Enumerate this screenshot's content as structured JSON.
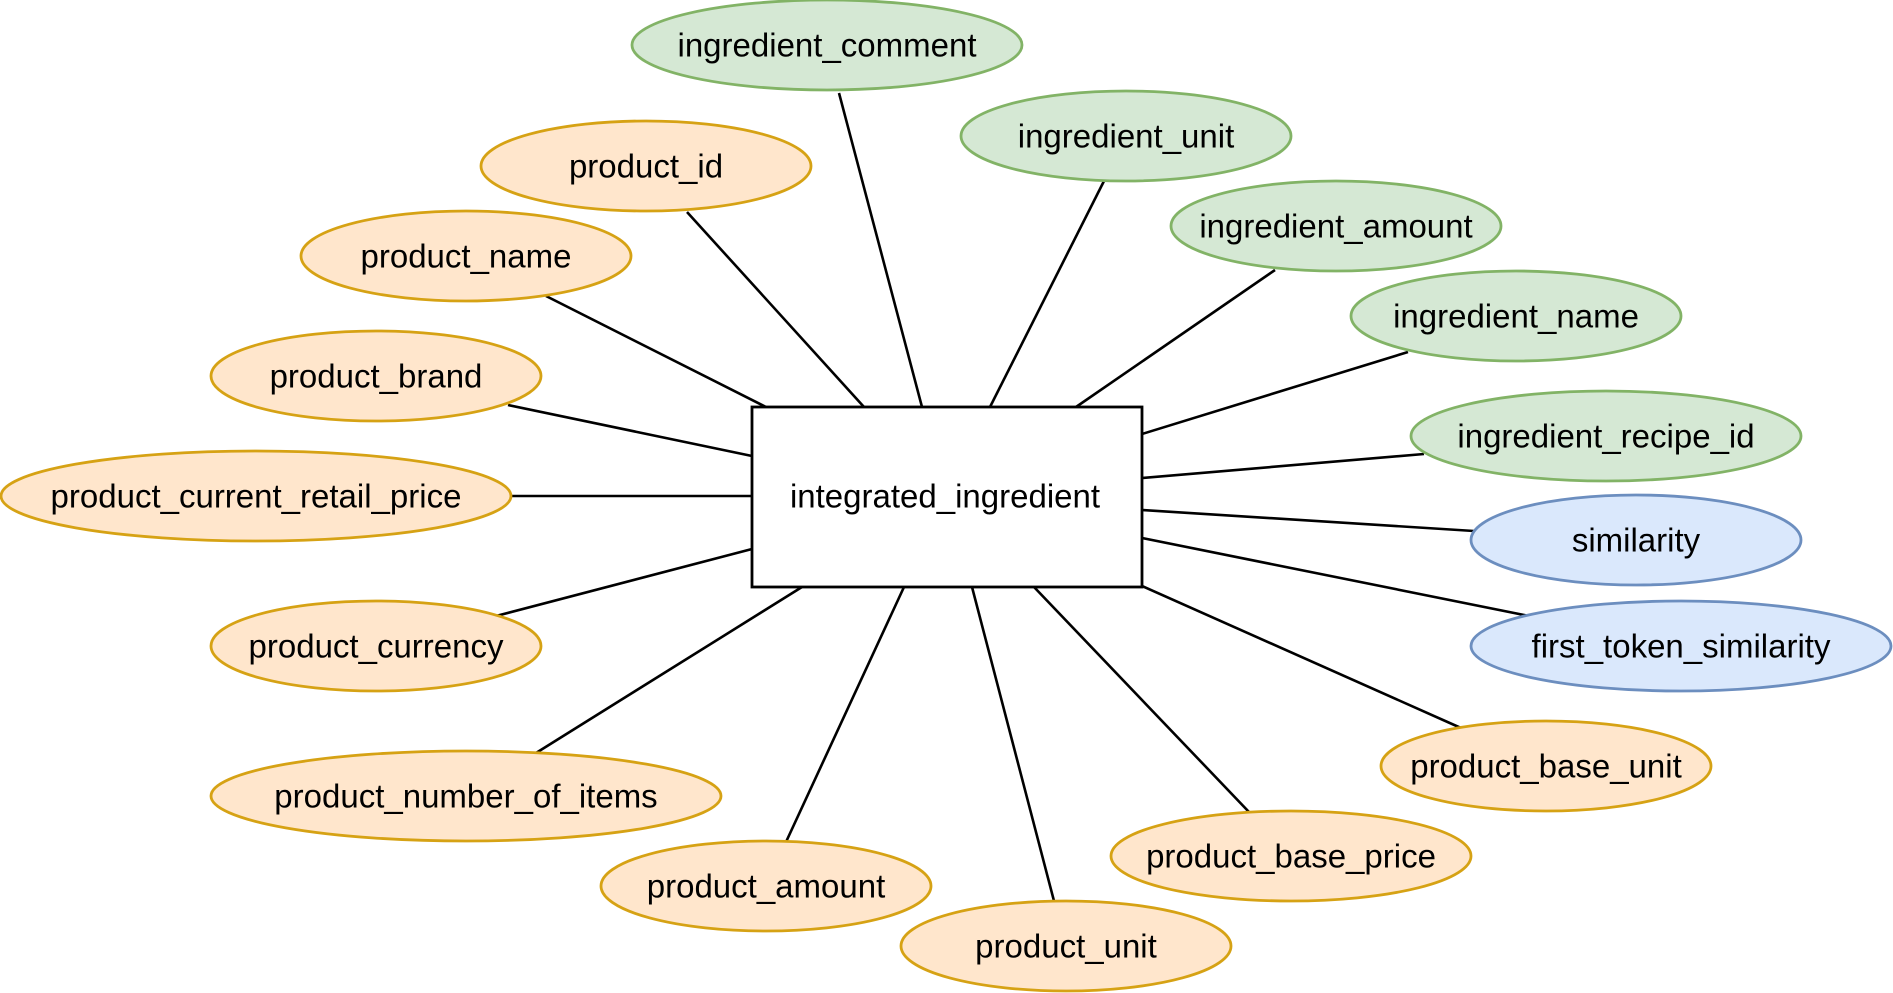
{
  "entity": {
    "name": "integrated_ingredient"
  },
  "attributes": [
    {
      "name": "ingredient_comment",
      "category": "ingredient"
    },
    {
      "name": "ingredient_unit",
      "category": "ingredient"
    },
    {
      "name": "ingredient_amount",
      "category": "ingredient"
    },
    {
      "name": "ingredient_name",
      "category": "ingredient"
    },
    {
      "name": "ingredient_recipe_id",
      "category": "ingredient"
    },
    {
      "name": "similarity",
      "category": "similarity"
    },
    {
      "name": "first_token_similarity",
      "category": "similarity"
    },
    {
      "name": "product_id",
      "category": "product"
    },
    {
      "name": "product_name",
      "category": "product"
    },
    {
      "name": "product_brand",
      "category": "product"
    },
    {
      "name": "product_current_retail_price",
      "category": "product"
    },
    {
      "name": "product_currency",
      "category": "product"
    },
    {
      "name": "product_number_of_items",
      "category": "product"
    },
    {
      "name": "product_amount",
      "category": "product"
    },
    {
      "name": "product_unit",
      "category": "product"
    },
    {
      "name": "product_base_price",
      "category": "product"
    },
    {
      "name": "product_base_unit",
      "category": "product"
    }
  ],
  "colors": {
    "ingredient": {
      "fill": "#d5e8d4",
      "stroke": "#82b366"
    },
    "similarity": {
      "fill": "#dae8fc",
      "stroke": "#6c8ebf"
    },
    "product": {
      "fill": "#ffe6cc",
      "stroke": "#d6a214"
    },
    "entity_fill": "#ffffff",
    "entity_stroke": "#000000",
    "connector": "#000000"
  }
}
